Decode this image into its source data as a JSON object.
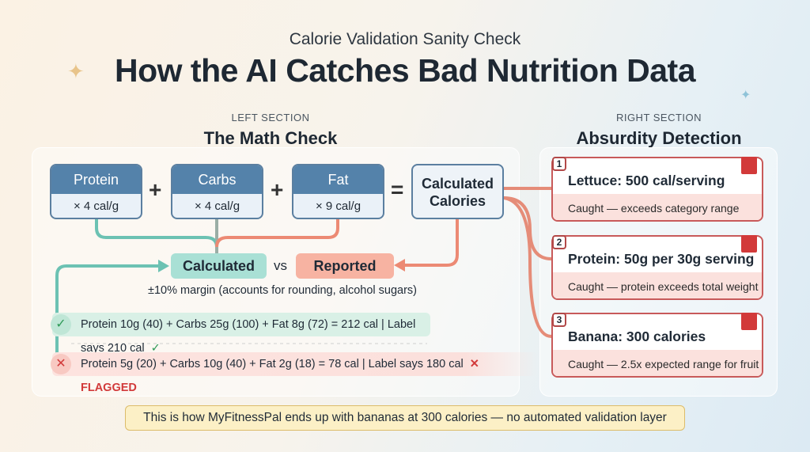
{
  "header": {
    "subtitle": "Calorie Validation Sanity Check",
    "title": "How the AI Catches Bad Nutrition Data"
  },
  "left": {
    "section_label": "LEFT SECTION",
    "title": "The Math Check",
    "macros": [
      {
        "name": "Protein",
        "factor": "× 4 cal/g"
      },
      {
        "name": "Carbs",
        "factor": "× 4 cal/g"
      },
      {
        "name": "Fat",
        "factor": "× 9 cal/g"
      }
    ],
    "plus": "+",
    "equals": "=",
    "calculated_box": "Calculated Calories",
    "calculated": "Calculated",
    "vs": "vs",
    "reported": "Reported",
    "margin": "±10% margin (accounts for rounding, alcohol sugars)",
    "examples": [
      {
        "status": "pass",
        "icon": "✓",
        "text": "Protein 10g (40) + Carbs 25g (100) + Fat 8g (72) = 212 cal | Label says 210 cal",
        "suffix": "✓"
      },
      {
        "status": "fail",
        "icon": "✕",
        "text": "Protein 5g (20) + Carbs 10g (40) + Fat 2g (18) = 78 cal | Label says 180 cal",
        "suffix": "✕ FLAGGED"
      }
    ]
  },
  "right": {
    "section_label": "RIGHT SECTION",
    "title": "Absurdity Detection",
    "cards": [
      {
        "num": "1",
        "title": "Lettuce: 500 cal/serving",
        "detail": "Caught — exceeds category range"
      },
      {
        "num": "2",
        "title": "Protein: 50g per 30g serving",
        "detail": "Caught — protein exceeds total weight"
      },
      {
        "num": "3",
        "title": "Banana: 300 calories",
        "detail": "Caught — 2.5x expected range for fruit"
      }
    ]
  },
  "footer": {
    "note": "This is how MyFitnessPal ends up with bananas at 300 calories — no automated validation layer"
  },
  "colors": {
    "blue": "#5482aa",
    "teal": "#6cc2b3",
    "salmon": "#ec8a74",
    "red": "#d23a3a"
  }
}
